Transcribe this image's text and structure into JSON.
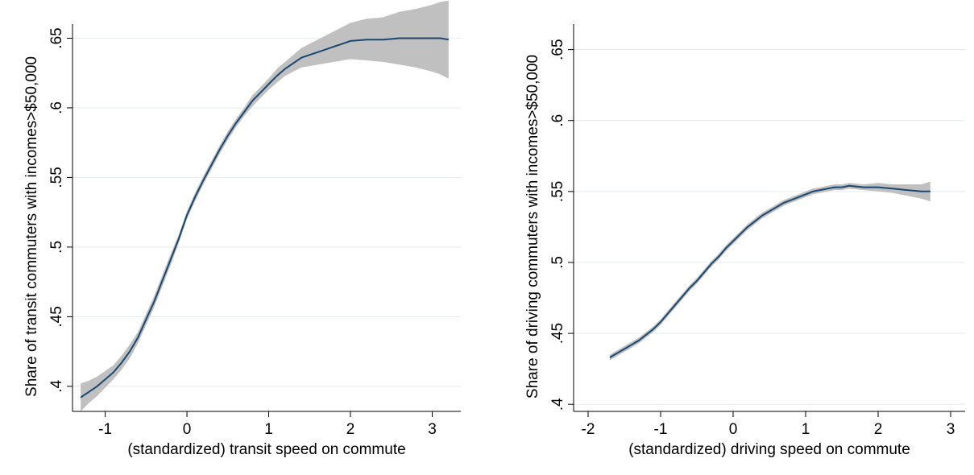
{
  "chart_data": [
    {
      "type": "line",
      "xlabel": "(standardized) transit speed on commute",
      "ylabel": "Share of transit commuters with incomes>$50,000",
      "xlim": [
        -1.4,
        3.35
      ],
      "ylim": [
        0.382,
        0.652
      ],
      "xticks": [
        -1,
        0,
        1,
        2,
        3
      ],
      "xtick_labels": [
        "-1",
        "0",
        "1",
        "2",
        "3"
      ],
      "yticks": [
        0.4,
        0.45,
        0.5,
        0.55,
        0.6,
        0.65
      ],
      "ytick_labels": [
        ".4",
        ".45",
        ".5",
        ".55",
        ".6",
        ".65"
      ],
      "grid": true,
      "colors": {
        "line": "#1a476f",
        "band": "#c0c0c0",
        "grid": "#e8eef0"
      },
      "series": [
        {
          "x": [
            -1.3,
            -1.2,
            -1.1,
            -1.0,
            -0.9,
            -0.8,
            -0.7,
            -0.6,
            -0.5,
            -0.4,
            -0.3,
            -0.2,
            -0.1,
            0.0,
            0.1,
            0.2,
            0.3,
            0.4,
            0.5,
            0.6,
            0.7,
            0.8,
            0.9,
            1.0,
            1.1,
            1.2,
            1.3,
            1.4,
            1.5,
            1.6,
            1.7,
            1.8,
            1.9,
            2.0,
            2.2,
            2.4,
            2.6,
            2.8,
            3.0,
            3.1,
            3.2
          ],
          "y": [
            0.392,
            0.396,
            0.4,
            0.405,
            0.41,
            0.417,
            0.425,
            0.435,
            0.448,
            0.461,
            0.476,
            0.491,
            0.506,
            0.523,
            0.536,
            0.548,
            0.559,
            0.57,
            0.58,
            0.589,
            0.597,
            0.605,
            0.611,
            0.617,
            0.623,
            0.628,
            0.632,
            0.636,
            0.638,
            0.64,
            0.642,
            0.644,
            0.646,
            0.648,
            0.649,
            0.649,
            0.65,
            0.65,
            0.65,
            0.65,
            0.649
          ],
          "lower": [
            0.382,
            0.388,
            0.393,
            0.399,
            0.405,
            0.412,
            0.42,
            0.431,
            0.444,
            0.457,
            0.472,
            0.487,
            0.503,
            0.52,
            0.533,
            0.545,
            0.556,
            0.567,
            0.577,
            0.586,
            0.594,
            0.601,
            0.607,
            0.613,
            0.618,
            0.623,
            0.626,
            0.629,
            0.63,
            0.631,
            0.632,
            0.633,
            0.634,
            0.635,
            0.634,
            0.633,
            0.631,
            0.629,
            0.626,
            0.624,
            0.621
          ],
          "upper": [
            0.402,
            0.404,
            0.407,
            0.411,
            0.415,
            0.422,
            0.43,
            0.439,
            0.452,
            0.465,
            0.48,
            0.495,
            0.509,
            0.526,
            0.539,
            0.551,
            0.562,
            0.573,
            0.583,
            0.592,
            0.6,
            0.609,
            0.615,
            0.621,
            0.628,
            0.633,
            0.638,
            0.643,
            0.646,
            0.649,
            0.652,
            0.655,
            0.658,
            0.661,
            0.664,
            0.665,
            0.669,
            0.671,
            0.674,
            0.676,
            0.677
          ]
        }
      ]
    },
    {
      "type": "line",
      "xlabel": "(standardized) driving speed on commute",
      "ylabel": "Share of driving commuters with incomes>$50,000",
      "xlim": [
        -2.2,
        3.2
      ],
      "ylim": [
        0.395,
        0.66
      ],
      "xticks": [
        -2,
        -1,
        0,
        1,
        2,
        3
      ],
      "xtick_labels": [
        "-2",
        "-1",
        "0",
        "1",
        "2",
        "3"
      ],
      "yticks": [
        0.4,
        0.45,
        0.5,
        0.55,
        0.6,
        0.65
      ],
      "ytick_labels": [
        ".4",
        ".45",
        ".5",
        ".55",
        ".6",
        ".65"
      ],
      "grid": true,
      "colors": {
        "line": "#1a476f",
        "band": "#c0c0c0",
        "grid": "#e8eef0"
      },
      "series": [
        {
          "x": [
            -1.7,
            -1.6,
            -1.5,
            -1.4,
            -1.3,
            -1.2,
            -1.1,
            -1.0,
            -0.9,
            -0.8,
            -0.7,
            -0.6,
            -0.5,
            -0.4,
            -0.3,
            -0.2,
            -0.1,
            0.0,
            0.1,
            0.2,
            0.3,
            0.4,
            0.5,
            0.6,
            0.7,
            0.8,
            0.9,
            1.0,
            1.1,
            1.2,
            1.3,
            1.4,
            1.5,
            1.6,
            1.8,
            2.0,
            2.2,
            2.4,
            2.6,
            2.72
          ],
          "y": [
            0.433,
            0.436,
            0.439,
            0.442,
            0.445,
            0.449,
            0.453,
            0.458,
            0.464,
            0.47,
            0.476,
            0.482,
            0.487,
            0.493,
            0.499,
            0.504,
            0.51,
            0.515,
            0.52,
            0.525,
            0.529,
            0.533,
            0.536,
            0.539,
            0.542,
            0.544,
            0.546,
            0.548,
            0.55,
            0.551,
            0.552,
            0.553,
            0.553,
            0.554,
            0.553,
            0.553,
            0.552,
            0.551,
            0.55,
            0.55
          ],
          "lower": [
            0.431,
            0.434,
            0.437,
            0.44,
            0.443,
            0.447,
            0.451,
            0.456,
            0.462,
            0.468,
            0.474,
            0.48,
            0.485,
            0.491,
            0.497,
            0.502,
            0.508,
            0.513,
            0.518,
            0.523,
            0.527,
            0.531,
            0.534,
            0.537,
            0.54,
            0.542,
            0.544,
            0.546,
            0.548,
            0.549,
            0.55,
            0.551,
            0.551,
            0.552,
            0.551,
            0.55,
            0.549,
            0.547,
            0.545,
            0.543
          ],
          "upper": [
            0.435,
            0.438,
            0.441,
            0.444,
            0.447,
            0.451,
            0.455,
            0.46,
            0.466,
            0.472,
            0.478,
            0.484,
            0.489,
            0.495,
            0.501,
            0.506,
            0.512,
            0.517,
            0.522,
            0.527,
            0.531,
            0.535,
            0.538,
            0.541,
            0.544,
            0.546,
            0.548,
            0.55,
            0.552,
            0.553,
            0.554,
            0.555,
            0.555,
            0.556,
            0.555,
            0.556,
            0.555,
            0.555,
            0.555,
            0.557
          ]
        }
      ]
    }
  ]
}
